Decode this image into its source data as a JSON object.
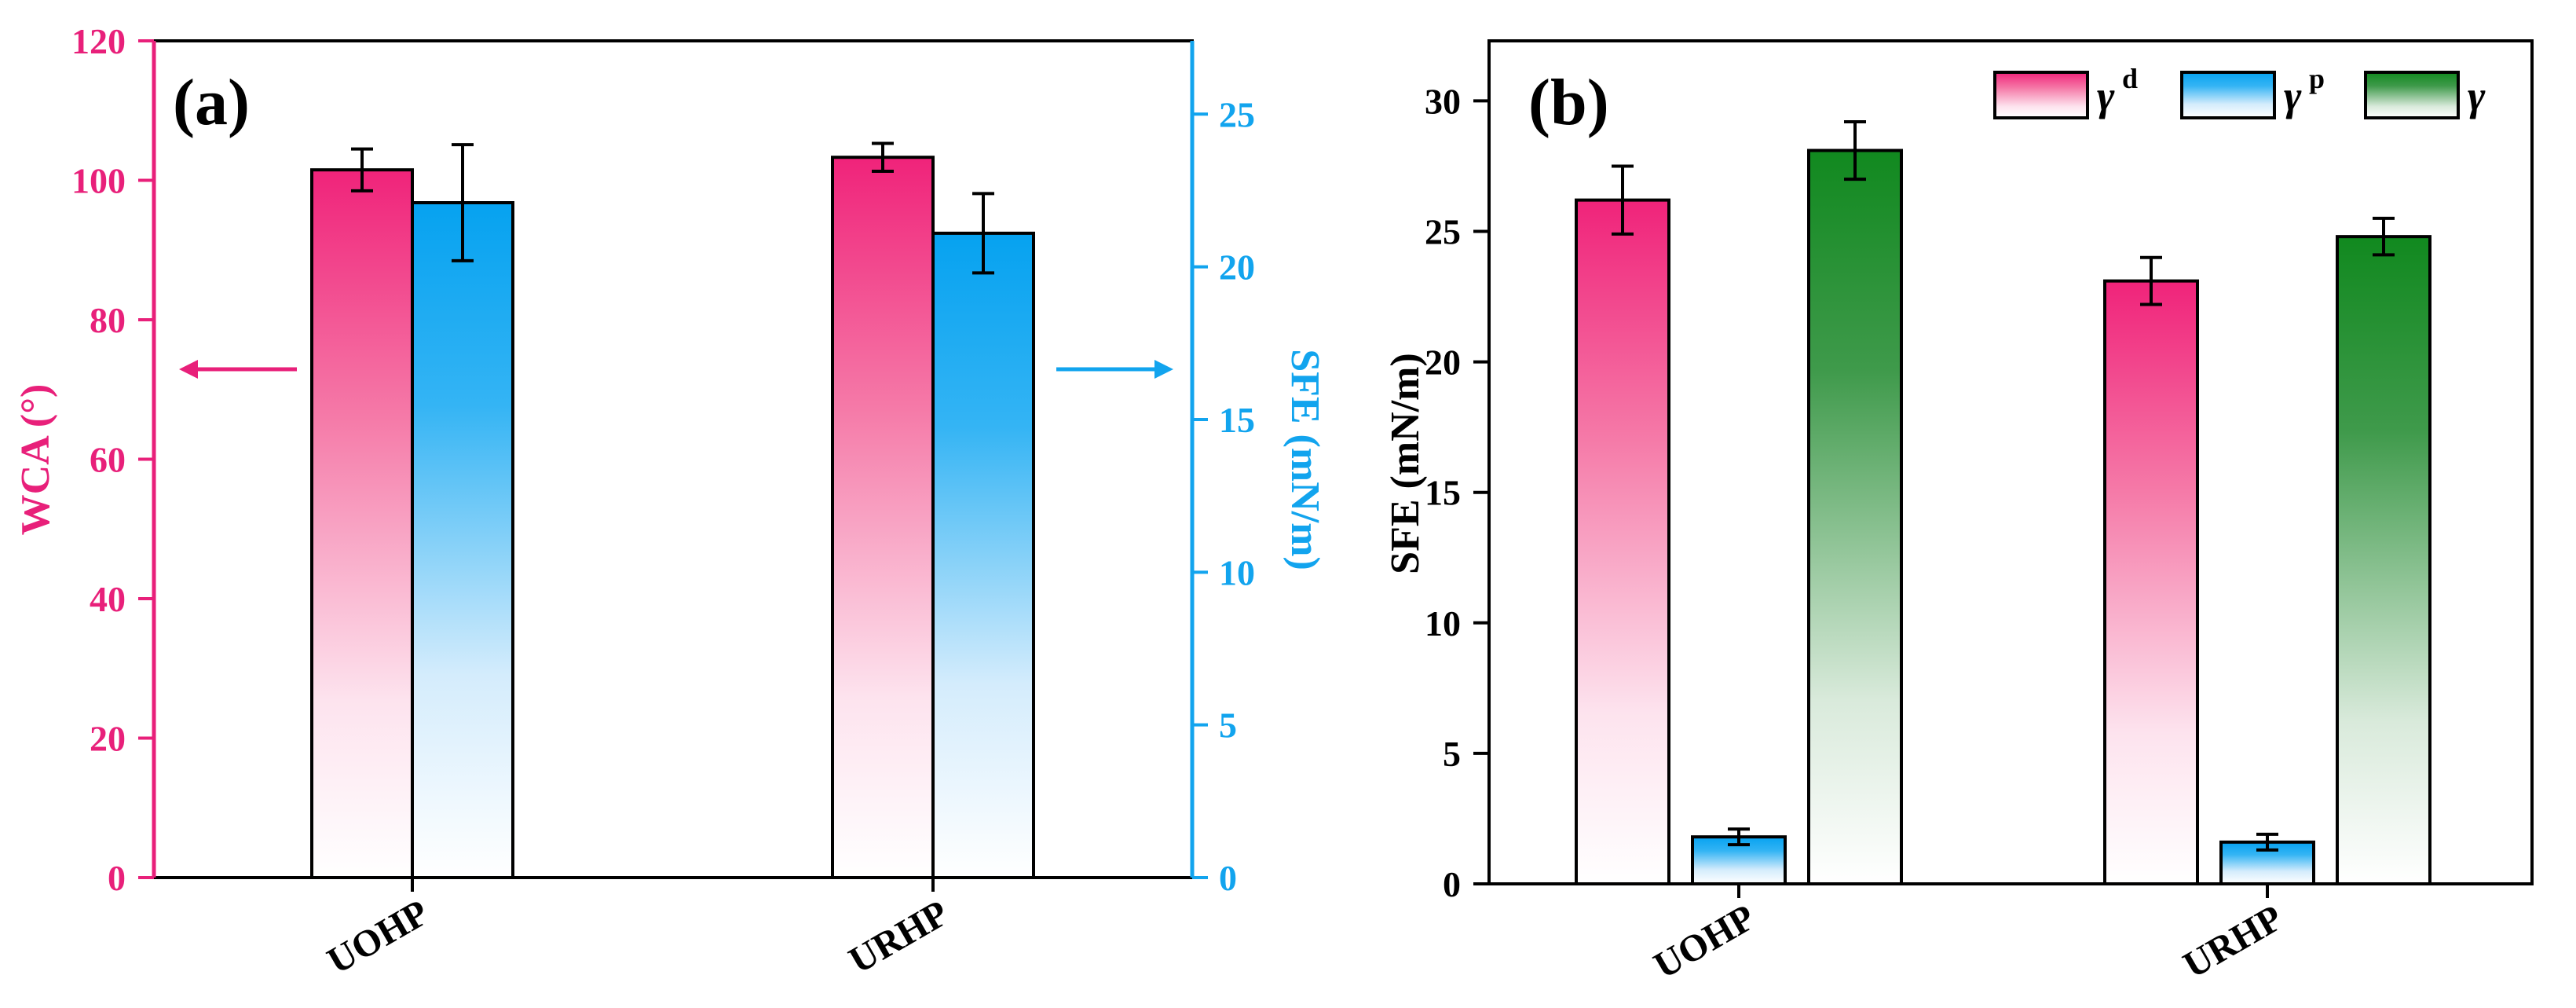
{
  "colors": {
    "magenta": "#e8207a",
    "blue": "#12a4ee",
    "green": "#1f8a2a",
    "pink_bar": "#f0387e",
    "blue_bar": "#0ea6f2",
    "green_bar": "#1c8e2a",
    "axis": "#000000"
  },
  "chart_data": [
    {
      "type": "bar",
      "panel_label": "(a)",
      "categories": [
        "UOHP",
        "URHP"
      ],
      "series": [
        {
          "name": "WCA",
          "axis": "left",
          "values": [
            101.5,
            103.3
          ],
          "errors": [
            3.0,
            2.0
          ]
        },
        {
          "name": "SFE",
          "axis": "right",
          "values": [
            22.1,
            21.1
          ],
          "errors": [
            1.9,
            1.3
          ]
        }
      ],
      "ylabel_left": "WCA (°)",
      "ylabel_right": "SFE (mN/m)",
      "ylim_left": [
        0,
        120
      ],
      "ylim_right": [
        0,
        27.4
      ],
      "yticks_left": [
        0,
        20,
        40,
        60,
        80,
        100,
        120
      ],
      "yticks_right": [
        0,
        5,
        10,
        15,
        20,
        25
      ],
      "arrows": [
        "left-pointing arrow to WCA axis",
        "right-pointing arrow to SFE axis"
      ]
    },
    {
      "type": "bar",
      "panel_label": "(b)",
      "categories": [
        "UOHP",
        "URHP"
      ],
      "series": [
        {
          "name": "γ",
          "sup": "d",
          "values": [
            26.2,
            23.1
          ],
          "errors": [
            1.3,
            0.9
          ]
        },
        {
          "name": "γ",
          "sup": "p",
          "values": [
            1.8,
            1.6
          ],
          "errors": [
            0.3,
            0.3
          ]
        },
        {
          "name": "γ",
          "sup": "",
          "values": [
            28.1,
            24.8
          ],
          "errors": [
            1.1,
            0.7
          ]
        }
      ],
      "ylabel": "SFE (mN/m)",
      "ylim": [
        0,
        32.3
      ],
      "yticks": [
        0,
        5,
        10,
        15,
        20,
        25,
        30
      ],
      "legend_position": "top-right"
    }
  ]
}
